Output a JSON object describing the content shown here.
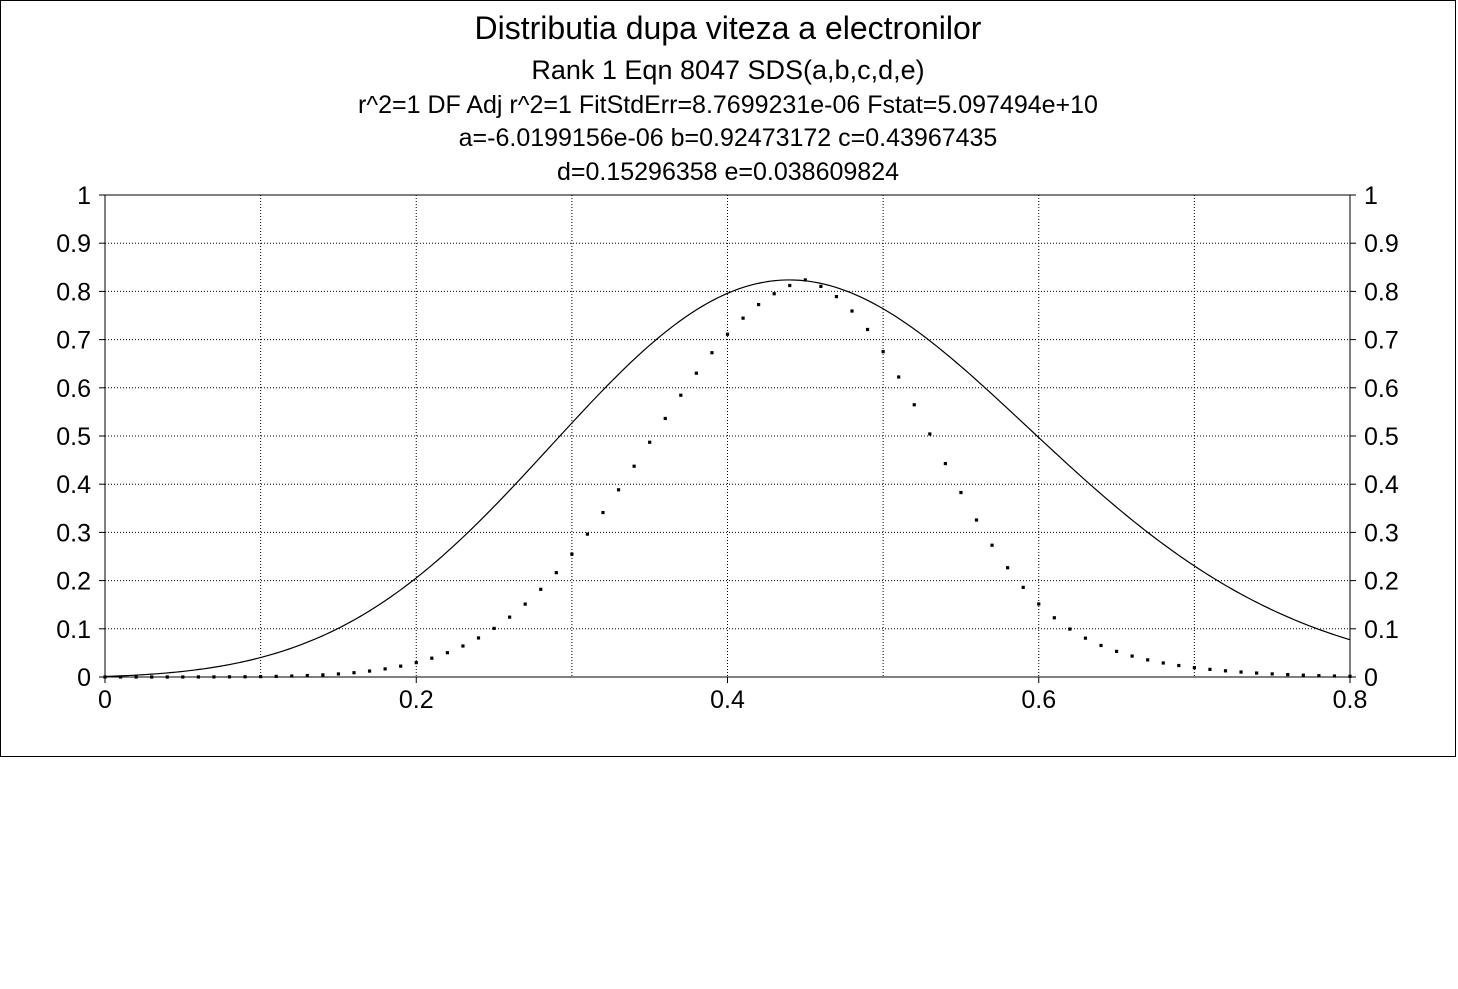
{
  "title_lines": [
    "Distributia dupa viteza a electronilor",
    "Rank 1  Eqn 8047  SDS(a,b,c,d,e)",
    "r^2=1  DF Adj r^2=1  FitStdErr=8.7699231e-06  Fstat=5.097494e+10",
    "a=-6.0199156e-06 b=0.92473172 c=0.43967435",
    "d=0.15296358 e=0.038609824"
  ],
  "colors": {
    "line": "#000000",
    "grid": "#000000",
    "background": "#ffffff"
  },
  "chart_data": {
    "type": "scatter",
    "title": "Distributia dupa viteza a electronilor",
    "xlabel": "",
    "ylabel": "",
    "xlim": [
      0,
      0.8
    ],
    "ylim": [
      0,
      1
    ],
    "x_ticks": [
      0,
      0.2,
      0.4,
      0.6,
      0.8
    ],
    "x_tick_labels": [
      "0",
      "0.2",
      "0.4",
      "0.6",
      "0.8"
    ],
    "x_gridlines": [
      0,
      0.1,
      0.2,
      0.3,
      0.4,
      0.5,
      0.6,
      0.7,
      0.8
    ],
    "y_ticks": [
      0,
      0.1,
      0.2,
      0.3,
      0.4,
      0.5,
      0.6,
      0.7,
      0.8,
      0.9,
      1
    ],
    "y_tick_labels": [
      "0",
      "0.1",
      "0.2",
      "0.3",
      "0.4",
      "0.5",
      "0.6",
      "0.7",
      "0.8",
      "0.9",
      "1"
    ],
    "grid": true,
    "right_axis_labels": true,
    "fit_parameters": {
      "a": -6.0199156e-06,
      "b": 0.92473172,
      "c": 0.43967435,
      "d": 0.15296358,
      "e": 0.038609824
    },
    "x": [
      0,
      0.01,
      0.02,
      0.03,
      0.04,
      0.05,
      0.06,
      0.07,
      0.08,
      0.09,
      0.1,
      0.11,
      0.12,
      0.13,
      0.14,
      0.15,
      0.16,
      0.17,
      0.18,
      0.19,
      0.2,
      0.21,
      0.22,
      0.23,
      0.24,
      0.25,
      0.26,
      0.27,
      0.28,
      0.29,
      0.3,
      0.31,
      0.32,
      0.33,
      0.34,
      0.35,
      0.36,
      0.37,
      0.38,
      0.39,
      0.4,
      0.41,
      0.42,
      0.43,
      0.44,
      0.45,
      0.46,
      0.47,
      0.48,
      0.49,
      0.5,
      0.51,
      0.52,
      0.53,
      0.54,
      0.55,
      0.56,
      0.57,
      0.58,
      0.59,
      0.6,
      0.61,
      0.62,
      0.63,
      0.64,
      0.65,
      0.66,
      0.67,
      0.68,
      0.69,
      0.7,
      0.71,
      0.72,
      0.73,
      0.74,
      0.75,
      0.76,
      0.77,
      0.78,
      0.79,
      0.8
    ],
    "y": [
      0.0,
      0.0,
      0.0,
      0.0,
      0.0,
      0.0,
      0.0001,
      0.0002,
      0.0003,
      0.0005,
      0.0008,
      0.0013,
      0.002,
      0.003,
      0.0044,
      0.0063,
      0.0089,
      0.0123,
      0.0168,
      0.0225,
      0.0298,
      0.039,
      0.0504,
      0.0643,
      0.081,
      0.1009,
      0.1242,
      0.1512,
      0.1819,
      0.2165,
      0.2548,
      0.2965,
      0.3412,
      0.3884,
      0.4373,
      0.487,
      0.5364,
      0.5846,
      0.6303,
      0.6728,
      0.7111,
      0.7445,
      0.7726,
      0.7952,
      0.8122,
      0.8238,
      0.8104,
      0.7892,
      0.7593,
      0.721,
      0.675,
      0.6224,
      0.5648,
      0.5042,
      0.4428,
      0.3827,
      0.3257,
      0.2734,
      0.2267,
      0.186,
      0.1515,
      0.1229,
      0.0995,
      0.0806,
      0.0654,
      0.0532,
      0.0434,
      0.0355,
      0.0291,
      0.0238,
      0.0194,
      0.0158,
      0.0128,
      0.0103,
      0.0082,
      0.0064,
      0.005,
      0.0038,
      0.0028,
      0.002,
      0.0014
    ]
  }
}
